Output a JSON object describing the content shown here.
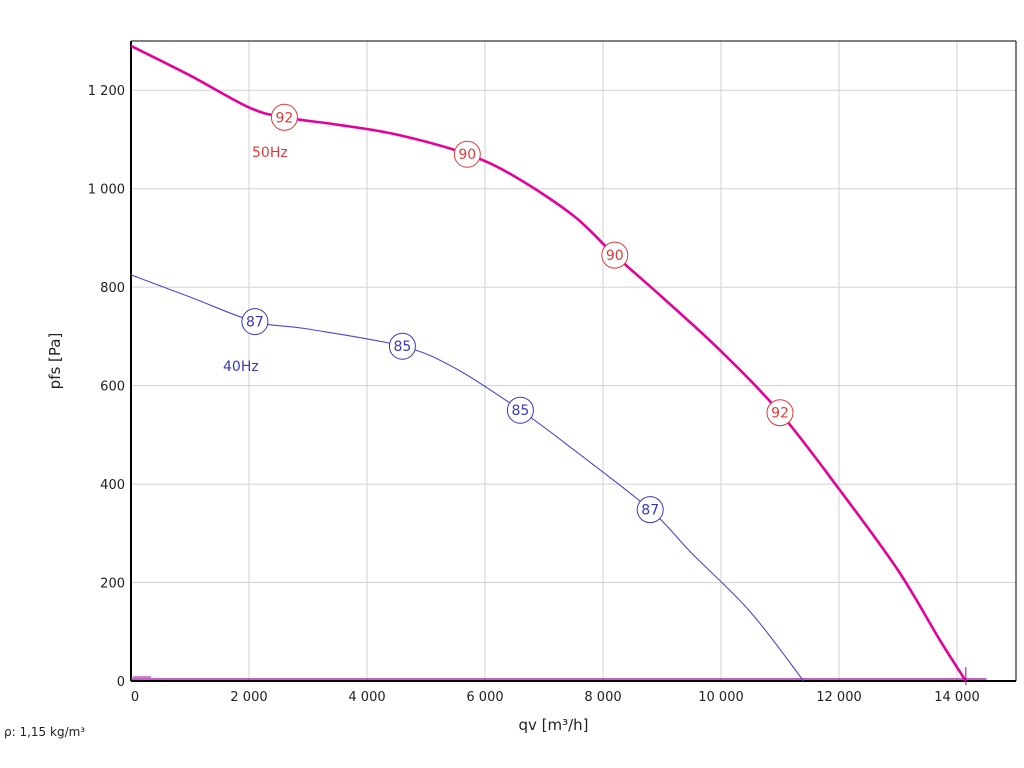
{
  "chart_data": {
    "type": "line",
    "xlabel": "qv [m³/h]",
    "ylabel": "pfs [Pa]",
    "xlim": [
      0,
      15000
    ],
    "ylim": [
      0,
      1300
    ],
    "x_ticks": [
      0,
      2000,
      4000,
      6000,
      8000,
      10000,
      12000,
      14000
    ],
    "x_tick_labels": [
      "0",
      "2 000",
      "4 000",
      "6 000",
      "8 000",
      "10 000",
      "12 000",
      "14 000"
    ],
    "y_ticks": [
      0,
      200,
      400,
      600,
      800,
      1000,
      1200
    ],
    "y_tick_labels": [
      "0",
      "200",
      "400",
      "600",
      "800",
      "1 000",
      "1 200"
    ],
    "grid": true,
    "note": "ρ: 1,15 kg/m³",
    "series": [
      {
        "name": "50Hz",
        "color": "#e6009a",
        "label_color": "#e03a3a",
        "points": [
          [
            0,
            1290
          ],
          [
            1000,
            1230
          ],
          [
            2000,
            1165
          ],
          [
            2600,
            1145
          ],
          [
            3500,
            1130
          ],
          [
            4500,
            1110
          ],
          [
            5700,
            1070
          ],
          [
            6500,
            1025
          ],
          [
            7500,
            945
          ],
          [
            8200,
            865
          ],
          [
            9000,
            780
          ],
          [
            10000,
            670
          ],
          [
            11000,
            545
          ],
          [
            12000,
            390
          ],
          [
            13000,
            225
          ],
          [
            13700,
            85
          ],
          [
            14150,
            0
          ]
        ],
        "markers": [
          {
            "x": 2600,
            "y": 1145,
            "label": "92"
          },
          {
            "x": 5700,
            "y": 1070,
            "label": "90"
          },
          {
            "x": 8200,
            "y": 865,
            "label": "90"
          },
          {
            "x": 11000,
            "y": 545,
            "label": "92"
          }
        ]
      },
      {
        "name": "40Hz",
        "color": "#4a4ac8",
        "label_color": "#3a3ab8",
        "points": [
          [
            0,
            825
          ],
          [
            1000,
            780
          ],
          [
            2100,
            730
          ],
          [
            3000,
            715
          ],
          [
            4600,
            680
          ],
          [
            5500,
            635
          ],
          [
            6600,
            550
          ],
          [
            7500,
            470
          ],
          [
            8800,
            348
          ],
          [
            9500,
            260
          ],
          [
            10500,
            140
          ],
          [
            11400,
            0
          ]
        ],
        "markers": [
          {
            "x": 2100,
            "y": 730,
            "label": "87"
          },
          {
            "x": 4600,
            "y": 680,
            "label": "85"
          },
          {
            "x": 6600,
            "y": 550,
            "label": "85"
          },
          {
            "x": 8800,
            "y": 348,
            "label": "87"
          }
        ]
      }
    ]
  }
}
